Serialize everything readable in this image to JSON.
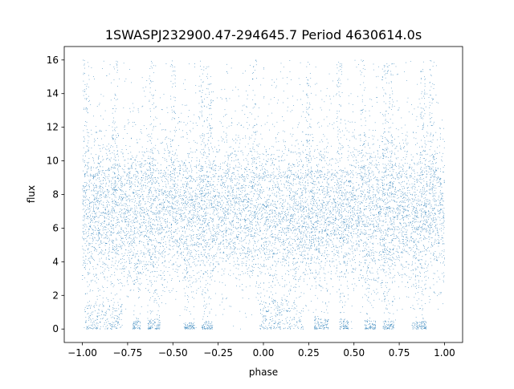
{
  "chart_data": {
    "type": "scatter",
    "title": "1SWASPJ232900.47-294645.7 Period 4630614.0s",
    "xlabel": "phase",
    "ylabel": "flux",
    "xlim": [
      -1.1,
      1.1
    ],
    "ylim": [
      -0.8,
      16.8
    ],
    "x_ticks": [
      -1.0,
      -0.75,
      -0.5,
      -0.25,
      0.0,
      0.25,
      0.5,
      0.75,
      1.0
    ],
    "x_tick_labels": [
      "−1.00",
      "−0.75",
      "−0.50",
      "−0.25",
      "0.00",
      "0.25",
      "0.50",
      "0.75",
      "1.00"
    ],
    "y_ticks": [
      0,
      2,
      4,
      6,
      8,
      10,
      12,
      14,
      16
    ],
    "y_tick_labels": [
      "0",
      "2",
      "4",
      "6",
      "8",
      "10",
      "12",
      "14",
      "16"
    ],
    "grid": false,
    "legend": "none",
    "point_color": "#1f77b4",
    "series": [
      {
        "x_range": [
          -1.0,
          1.0
        ],
        "typical_y": 6.8,
        "typical_spread": [
          4.5,
          9.2
        ],
        "max_y": 16.0,
        "min_y": 0.0,
        "low_flux_clusters": [
          {
            "x": [
              -0.99,
              -0.78
            ],
            "y": [
              0.0,
              1.5
            ]
          },
          {
            "x": [
              -0.72,
              -0.68
            ],
            "y": [
              0.0,
              0.5
            ]
          },
          {
            "x": [
              -0.64,
              -0.57
            ],
            "y": [
              0.0,
              0.6
            ]
          },
          {
            "x": [
              -0.44,
              -0.38
            ],
            "y": [
              0.0,
              0.4
            ]
          },
          {
            "x": [
              -0.34,
              -0.28
            ],
            "y": [
              0.0,
              0.5
            ]
          },
          {
            "x": [
              -0.02,
              0.22
            ],
            "y": [
              0.0,
              1.8
            ]
          },
          {
            "x": [
              0.28,
              0.36
            ],
            "y": [
              0.0,
              0.6
            ]
          },
          {
            "x": [
              0.42,
              0.47
            ],
            "y": [
              0.0,
              0.5
            ]
          },
          {
            "x": [
              0.56,
              0.62
            ],
            "y": [
              0.0,
              0.5
            ]
          },
          {
            "x": [
              0.66,
              0.72
            ],
            "y": [
              0.0,
              0.5
            ]
          },
          {
            "x": [
              0.82,
              0.9
            ],
            "y": [
              0.0,
              0.5
            ]
          }
        ],
        "high_flux_spikes_x": [
          -0.98,
          -0.82,
          -0.62,
          -0.5,
          -0.34,
          -0.3,
          -0.05,
          0.25,
          0.42,
          0.55,
          0.67,
          0.7,
          0.88,
          0.93
        ]
      }
    ]
  }
}
